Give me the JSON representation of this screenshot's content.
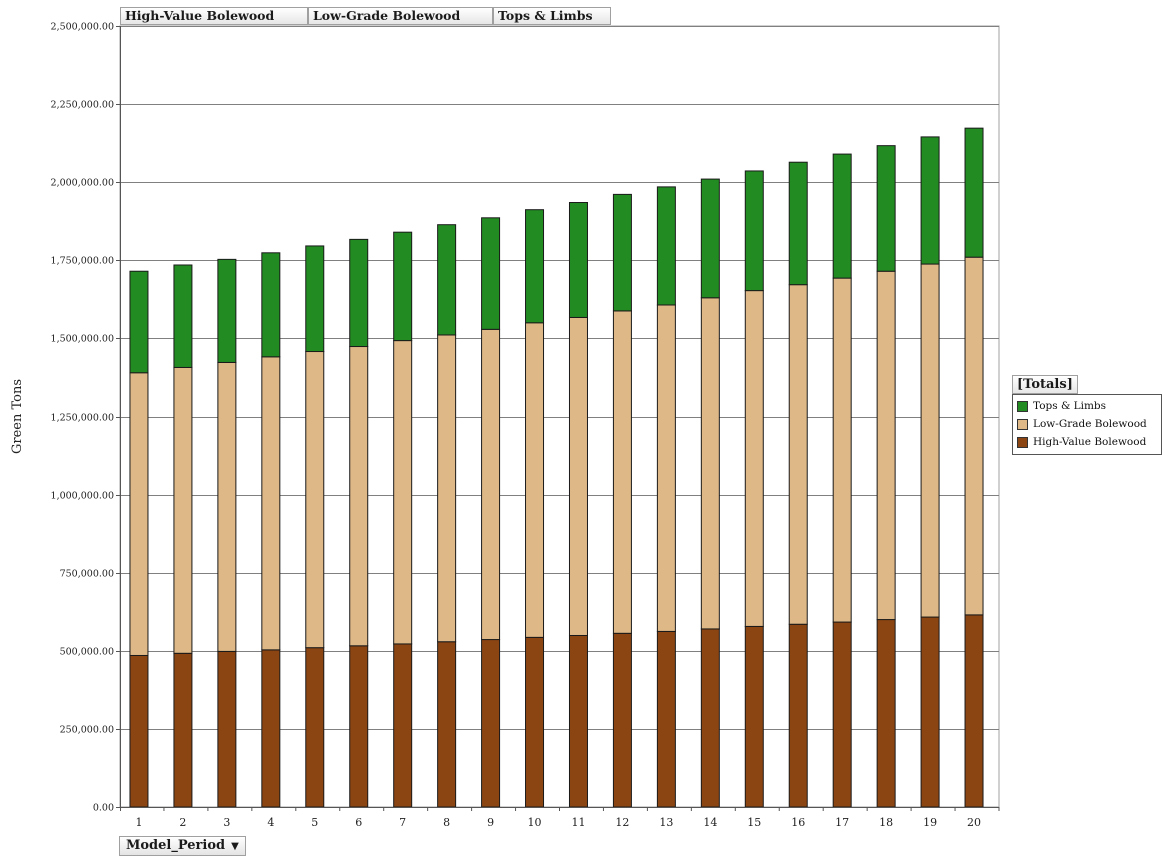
{
  "filter_fields": [
    "High-Value Bolewood",
    "Low-Grade Bolewood",
    "Tops & Limbs"
  ],
  "axis_field": {
    "label": "Model_Period",
    "arrow": "▼"
  },
  "legend_title": "[Totals]",
  "colors": {
    "High-Value Bolewood": "#8b4513",
    "Low-Grade Bolewood": "#deb887",
    "Tops & Limbs": "#228b22"
  },
  "chart_data": {
    "type": "bar",
    "stacked": true,
    "ylabel": "Green Tons",
    "xlabel": "",
    "ylim": [
      0,
      2500000
    ],
    "yticks": [
      0,
      250000,
      500000,
      750000,
      1000000,
      1250000,
      1500000,
      1750000,
      2000000,
      2250000,
      2500000
    ],
    "ytick_labels": [
      "0.00",
      "250,000.00",
      "500,000.00",
      "750,000.00",
      "1,000,000.00",
      "1,250,000.00",
      "1,500,000.00",
      "1,750,000.00",
      "2,000,000.00",
      "2,250,000.00",
      "2,500,000.00"
    ],
    "grid": true,
    "legend_position": "right",
    "categories": [
      "1",
      "2",
      "3",
      "4",
      "5",
      "6",
      "7",
      "8",
      "9",
      "10",
      "11",
      "12",
      "13",
      "14",
      "15",
      "16",
      "17",
      "18",
      "19",
      "20"
    ],
    "series": [
      {
        "name": "High-Value Bolewood",
        "values": [
          485000,
          492000,
          498000,
          503000,
          510000,
          516000,
          522000,
          529000,
          536000,
          543000,
          549000,
          556000,
          562000,
          570000,
          578000,
          585000,
          592000,
          600000,
          608000,
          615000
        ]
      },
      {
        "name": "Low-Grade Bolewood",
        "values": [
          905000,
          915000,
          925000,
          938000,
          948000,
          958000,
          971000,
          982000,
          993000,
          1007000,
          1018000,
          1032000,
          1045000,
          1060000,
          1075000,
          1087000,
          1101000,
          1115000,
          1130000,
          1145000
        ]
      },
      {
        "name": "Tops & Limbs",
        "values": [
          325000,
          328000,
          330000,
          333000,
          338000,
          343000,
          347000,
          353000,
          357000,
          362000,
          368000,
          373000,
          378000,
          380000,
          383000,
          392000,
          397000,
          402000,
          407000,
          413000
        ]
      }
    ]
  }
}
